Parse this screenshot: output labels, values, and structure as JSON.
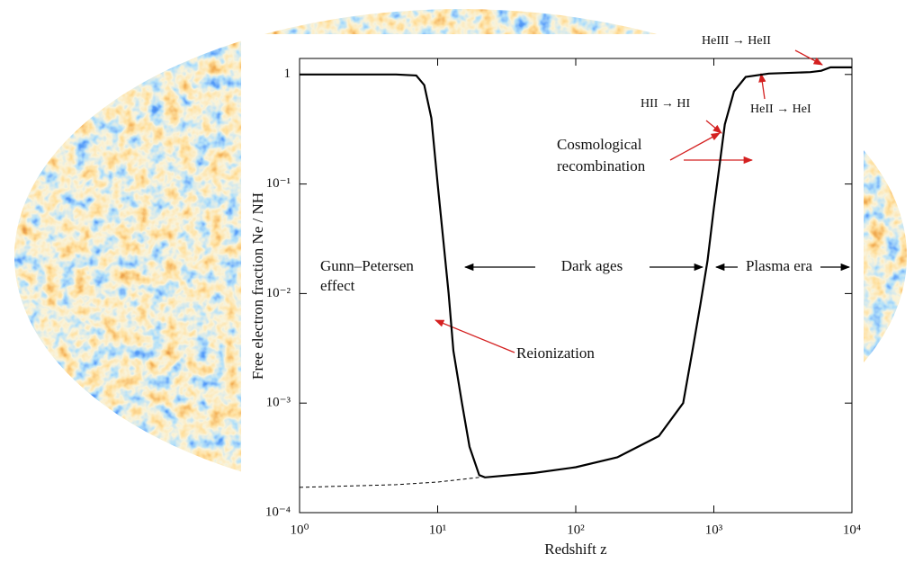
{
  "chart_data": {
    "type": "line",
    "x_label": "Redshift z",
    "y_label": "Free electron fraction Ne / NH",
    "xscale": "log",
    "yscale": "log",
    "xlim": [
      1,
      10000
    ],
    "ylim": [
      0.0001,
      1.4
    ],
    "xticks": [
      {
        "value": 1,
        "label": "10⁰"
      },
      {
        "value": 10,
        "label": "10¹"
      },
      {
        "value": 100,
        "label": "10²"
      },
      {
        "value": 1000,
        "label": "10³"
      },
      {
        "value": 10000,
        "label": "10⁴"
      }
    ],
    "yticks": [
      {
        "value": 0.0001,
        "label": "10⁻⁴"
      },
      {
        "value": 0.001,
        "label": "10⁻³"
      },
      {
        "value": 0.01,
        "label": "10⁻²"
      },
      {
        "value": 0.1,
        "label": "10⁻¹"
      },
      1
    ],
    "series": [
      {
        "style": "solid",
        "color": "#000000",
        "x": [
          1,
          5,
          7,
          8,
          9,
          10,
          11,
          12,
          13,
          15,
          17,
          20,
          22,
          50,
          100,
          200,
          400,
          600,
          700,
          800,
          900,
          1000,
          1100,
          1200,
          1400,
          1700,
          2500,
          5000,
          6000,
          7000,
          10000
        ],
        "values": [
          1,
          1,
          0.98,
          0.8,
          0.4,
          0.1,
          0.03,
          0.01,
          0.003,
          0.001,
          0.0004,
          0.00022,
          0.00021,
          0.00023,
          0.00026,
          0.00032,
          0.0005,
          0.001,
          0.003,
          0.008,
          0.02,
          0.06,
          0.15,
          0.35,
          0.7,
          0.95,
          1.02,
          1.05,
          1.08,
          1.16,
          1.16
        ]
      },
      {
        "style": "dashed",
        "color": "#000000",
        "x": [
          1,
          5,
          10,
          20
        ],
        "values": [
          0.00017,
          0.00018,
          0.00019,
          0.00021
        ]
      }
    ],
    "annotations": [
      "Gunn–Petersen",
      "effect",
      "Dark ages",
      "Plasma era",
      "Reionization",
      "Cosmological",
      "recombination",
      "HII → HI",
      "HeII → HeI",
      "HeIII → HeII"
    ]
  }
}
